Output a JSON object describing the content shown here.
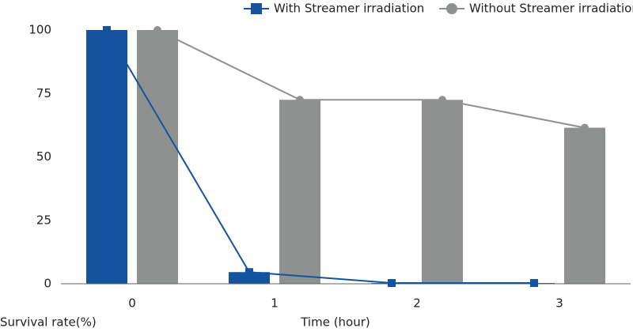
{
  "chart_data": {
    "type": "bar-line",
    "x_label": "Time (hour)",
    "y_label": "Survival rate(%)",
    "categories": [
      "0",
      "1",
      "2",
      "3"
    ],
    "series": [
      {
        "name": "With Streamer irradiation",
        "color": "#14539f",
        "values": [
          100,
          4.6,
          0.3,
          0.3
        ]
      },
      {
        "name": "Without Streamer irradiation",
        "color": "#8f9090",
        "values": [
          100,
          72.5,
          72.5,
          61.5
        ]
      }
    ],
    "ylim": [
      0,
      100
    ],
    "yticks": [
      0,
      25,
      50,
      75,
      100
    ],
    "grid": false
  }
}
